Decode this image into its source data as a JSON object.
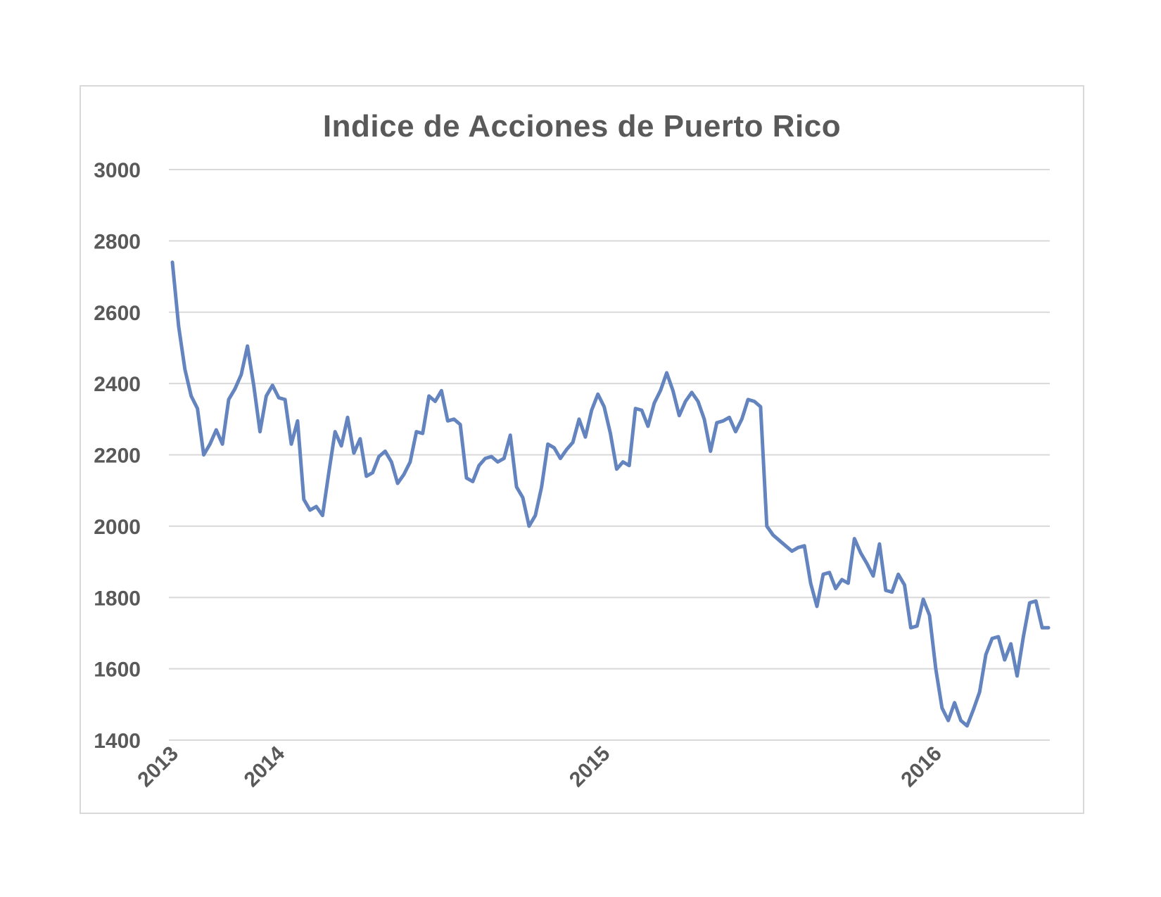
{
  "chart_data": {
    "type": "line",
    "title": "Indice de Acciones de Puerto Rico",
    "xlabel": "",
    "ylabel": "",
    "ylim": [
      1400,
      3000
    ],
    "yticks": [
      "3000",
      "2800",
      "2600",
      "2400",
      "2200",
      "2000",
      "1800",
      "1600",
      "1400"
    ],
    "xticks": [
      {
        "label": "2013",
        "index": 0
      },
      {
        "label": "2014",
        "index": 17
      },
      {
        "label": "2015",
        "index": 69
      },
      {
        "label": "2016",
        "index": 122
      }
    ],
    "grid": true,
    "legend": "none",
    "line_color": "#6384be",
    "series": [
      {
        "values": [
          2740,
          2560,
          2440,
          2365,
          2330,
          2200,
          2230,
          2270,
          2230,
          2355,
          2385,
          2425,
          2505,
          2395,
          2265,
          2365,
          2395,
          2360,
          2355,
          2230,
          2295,
          2075,
          2045,
          2055,
          2030,
          2150,
          2265,
          2225,
          2305,
          2205,
          2245,
          2140,
          2150,
          2195,
          2210,
          2180,
          2120,
          2145,
          2180,
          2265,
          2260,
          2365,
          2350,
          2380,
          2295,
          2300,
          2285,
          2135,
          2125,
          2170,
          2190,
          2195,
          2180,
          2190,
          2255,
          2110,
          2080,
          2000,
          2030,
          2110,
          2230,
          2220,
          2190,
          2215,
          2235,
          2300,
          2250,
          2325,
          2370,
          2335,
          2260,
          2160,
          2180,
          2170,
          2330,
          2325,
          2280,
          2345,
          2380,
          2430,
          2380,
          2310,
          2350,
          2375,
          2350,
          2300,
          2210,
          2290,
          2295,
          2305,
          2265,
          2300,
          2355,
          2350,
          2335,
          2000,
          1975,
          1960,
          1945,
          1930,
          1940,
          1945,
          1840,
          1775,
          1865,
          1870,
          1825,
          1850,
          1840,
          1965,
          1925,
          1895,
          1860,
          1950,
          1820,
          1815,
          1865,
          1835,
          1715,
          1720,
          1795,
          1750,
          1600,
          1490,
          1455,
          1505,
          1455,
          1440,
          1485,
          1535,
          1640,
          1685,
          1690,
          1625,
          1670,
          1580,
          1690,
          1785,
          1790,
          1715,
          1715
        ]
      }
    ]
  }
}
